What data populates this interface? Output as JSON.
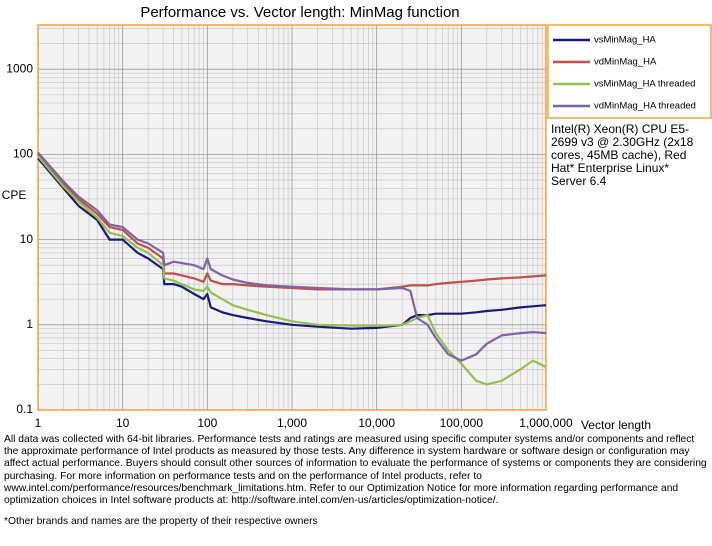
{
  "chart_data": {
    "type": "line",
    "title": "Performance vs. Vector length: MinMag function",
    "xlabel": "Vector length",
    "ylabel": "CPE",
    "xscale": "log",
    "yscale": "log",
    "grid": true,
    "legend": "right",
    "x": [
      1,
      2,
      3,
      5,
      7,
      10,
      15,
      20,
      30,
      31,
      40,
      50,
      70,
      90,
      100,
      110,
      150,
      200,
      300,
      500,
      1000,
      2000,
      5000,
      10000,
      20000,
      25000,
      30000,
      40000,
      50000,
      70000,
      100000,
      150000,
      200000,
      300000,
      500000,
      700000,
      1000000
    ],
    "series": [
      {
        "name": "vsMinMag_HA",
        "color": "#1a1a7a",
        "values": [
          90,
          40,
          25,
          17,
          10,
          10,
          7,
          6,
          4.5,
          3,
          3,
          2.8,
          2.3,
          2,
          2.3,
          1.6,
          1.4,
          1.3,
          1.2,
          1.1,
          1,
          0.95,
          0.9,
          0.92,
          1,
          1.2,
          1.3,
          1.3,
          1.35,
          1.35,
          1.35,
          1.4,
          1.45,
          1.5,
          1.6,
          1.65,
          1.7
        ]
      },
      {
        "name": "vdMinMag_HA",
        "color": "#c0504d",
        "values": [
          100,
          45,
          30,
          20,
          14,
          13,
          9,
          8,
          6,
          4,
          4,
          3.8,
          3.5,
          3.2,
          4,
          3.3,
          3,
          3,
          2.9,
          2.8,
          2.7,
          2.6,
          2.6,
          2.6,
          2.8,
          2.9,
          2.9,
          2.9,
          3,
          3.1,
          3.2,
          3.3,
          3.4,
          3.5,
          3.6,
          3.7,
          3.8
        ]
      },
      {
        "name": "vsMinMag_HA threaded",
        "color": "#92c050",
        "values": [
          95,
          42,
          28,
          18,
          12,
          11,
          8,
          7,
          5,
          3.5,
          3.3,
          3,
          2.6,
          2.5,
          2.8,
          2.4,
          2,
          1.7,
          1.5,
          1.3,
          1.1,
          1,
          0.98,
          0.97,
          1,
          1.1,
          1.2,
          1.3,
          0.8,
          0.5,
          0.35,
          0.22,
          0.2,
          0.22,
          0.3,
          0.38,
          0.32
        ]
      },
      {
        "name": "vdMinMag_HA threaded",
        "color": "#8064a2",
        "values": [
          105,
          48,
          32,
          22,
          15,
          14,
          10,
          9,
          7,
          5,
          5.5,
          5.3,
          5,
          4.5,
          6,
          4.5,
          3.8,
          3.4,
          3.1,
          2.9,
          2.8,
          2.7,
          2.6,
          2.6,
          2.7,
          2.5,
          1.2,
          1,
          0.7,
          0.45,
          0.38,
          0.45,
          0.6,
          0.75,
          0.8,
          0.82,
          0.8
        ]
      }
    ],
    "xlim": [
      1,
      1000000
    ],
    "xticks": [
      1,
      10,
      100,
      {
        "value": 1000,
        "label": "1,000"
      },
      {
        "value": 10000,
        "label": "10,000"
      },
      {
        "value": 100000,
        "label": "100,000"
      },
      {
        "value": 1000000,
        "label": "1,000,000"
      }
    ],
    "ylim": [
      0.1,
      3300
    ],
    "yticks": [
      0.1,
      1,
      10,
      100,
      1000
    ],
    "annotation": "Intel(R) Xeon(R) CPU E5-2699 v3 @ 2.30GHz (2x18 cores, 45MB cache), Red Hat* Enterprise Linux* Server 6.4",
    "footnote": "All data was collected with 64-bit libraries. Performance tests and ratings are measured using specific computer systems and/or components and reflect the approximate performance of Intel products as measured by those tests. Any difference in system hardware or software design or configuration may affect actual performance. Buyers should consult other sources of information to evaluate the performance of systems or components they are considering purchasing. For more information on performance tests and on the performance of Intel products, refer to www.intel.com/performance/resources/benchmark_limitations.htm. Refer to our Optimization Notice for more information regarding performance and optimization choices in Intel software products at: http://software.intel.com/en-us/articles/optimization-notice/.",
    "footnote2": "*Other brands and names are the property of their respective owners"
  }
}
